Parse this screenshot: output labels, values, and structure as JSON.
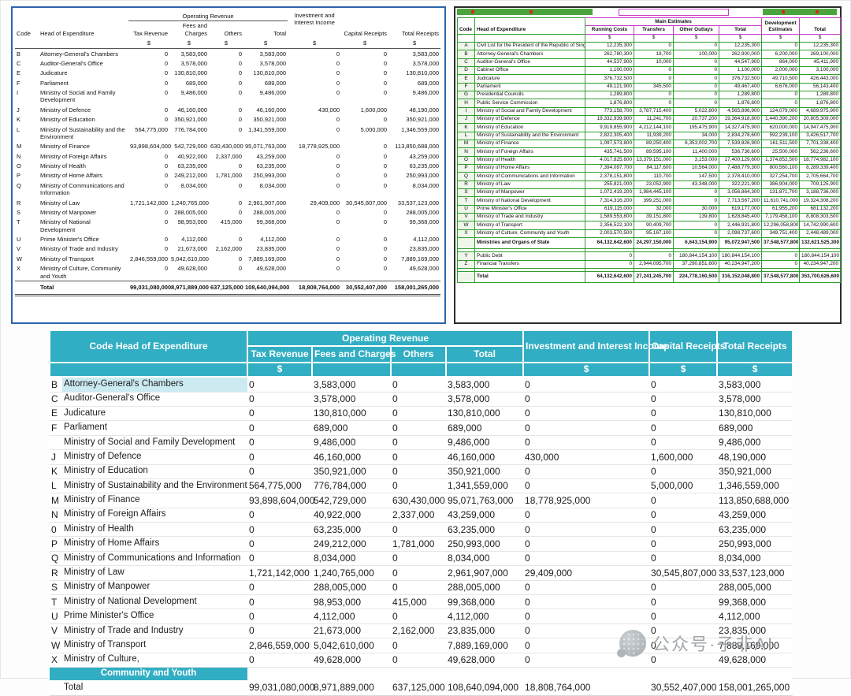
{
  "colors": {
    "accent_teal": "#31aec3",
    "highlight": "#cbeaf1",
    "left_border": "#2e64ad",
    "annotation_green": "#2f9e2f",
    "annotation_magenta": "#c83cc8"
  },
  "watermark": {
    "text": "公众号·子非AI"
  },
  "left_panel": {
    "headers": {
      "code": "Code",
      "head": "Head of Expenditure",
      "group_operating": "Operating Revenue",
      "cols": [
        "Tax Revenue",
        "Fees and Charges",
        "Others",
        "Total"
      ],
      "investment": "Investment and Interest Income",
      "capital": "Capital Receipts",
      "total_receipts": "Total Receipts",
      "currency": "$"
    },
    "rows": [
      {
        "code": "B",
        "head": "Attorney-General's Chambers",
        "values": [
          "0",
          "3,583,000",
          "0",
          "3,583,000",
          "0",
          "0",
          "3,583,000"
        ]
      },
      {
        "code": "C",
        "head": "Auditor-General's Office",
        "values": [
          "0",
          "3,578,000",
          "0",
          "3,578,000",
          "0",
          "0",
          "3,578,000"
        ]
      },
      {
        "code": "E",
        "head": "Judicature",
        "values": [
          "0",
          "130,810,000",
          "0",
          "130,810,000",
          "0",
          "0",
          "130,810,000"
        ]
      },
      {
        "code": "F",
        "head": "Parliament",
        "values": [
          "0",
          "689,000",
          "0",
          "689,000",
          "0",
          "0",
          "689,000"
        ]
      },
      {
        "code": "I",
        "head": "Ministry of Social and Family Development",
        "values": [
          "0",
          "9,486,000",
          "0",
          "9,486,000",
          "0",
          "0",
          "9,486,000"
        ]
      },
      {
        "code": "J",
        "head": "Ministry of Defence",
        "values": [
          "0",
          "46,160,000",
          "0",
          "46,160,000",
          "430,000",
          "1,600,000",
          "48,190,000"
        ]
      },
      {
        "code": "K",
        "head": "Ministry of Education",
        "values": [
          "0",
          "350,921,000",
          "0",
          "350,921,000",
          "0",
          "0",
          "350,921,000"
        ]
      },
      {
        "code": "L",
        "head": "Ministry of Sustainability and the Environment",
        "values": [
          "564,775,000",
          "776,784,000",
          "0",
          "1,341,559,000",
          "0",
          "5,000,000",
          "1,346,559,000"
        ]
      },
      {
        "code": "M",
        "head": "Ministry of Finance",
        "values": [
          "93,898,604,000",
          "542,729,000",
          "630,430,000",
          "95,071,763,000",
          "18,778,925,000",
          "0",
          "113,850,688,000"
        ]
      },
      {
        "code": "N",
        "head": "Ministry of Foreign Affairs",
        "values": [
          "0",
          "40,922,000",
          "2,337,000",
          "43,259,000",
          "0",
          "0",
          "43,259,000"
        ]
      },
      {
        "code": "O",
        "head": "Ministry of Health",
        "values": [
          "0",
          "63,235,000",
          "0",
          "63,235,000",
          "0",
          "0",
          "63,235,000"
        ]
      },
      {
        "code": "P",
        "head": "Ministry of Home Affairs",
        "values": [
          "0",
          "249,212,000",
          "1,781,000",
          "250,993,000",
          "0",
          "0",
          "250,993,000"
        ]
      },
      {
        "code": "Q",
        "head": "Ministry of Communications and Information",
        "values": [
          "0",
          "8,034,000",
          "0",
          "8,034,000",
          "0",
          "0",
          "8,034,000"
        ]
      },
      {
        "code": "R",
        "head": "Ministry of Law",
        "values": [
          "1,721,142,000",
          "1,240,765,000",
          "0",
          "2,961,907,000",
          "29,409,000",
          "30,545,807,000",
          "33,537,123,000"
        ]
      },
      {
        "code": "S",
        "head": "Ministry of Manpower",
        "values": [
          "0",
          "288,005,000",
          "0",
          "288,005,000",
          "0",
          "0",
          "288,005,000"
        ]
      },
      {
        "code": "T",
        "head": "Ministry of National Development",
        "values": [
          "0",
          "98,953,000",
          "415,000",
          "99,368,000",
          "0",
          "0",
          "99,368,000"
        ]
      },
      {
        "code": "U",
        "head": "Prime Minister's Office",
        "values": [
          "0",
          "4,112,000",
          "0",
          "4,112,000",
          "0",
          "0",
          "4,112,000"
        ]
      },
      {
        "code": "V",
        "head": "Ministry of Trade and Industry",
        "values": [
          "0",
          "21,673,000",
          "2,162,000",
          "23,835,000",
          "0",
          "0",
          "23,835,000"
        ]
      },
      {
        "code": "W",
        "head": "Ministry of Transport",
        "values": [
          "2,846,559,000",
          "5,042,610,000",
          "0",
          "7,889,169,000",
          "0",
          "0",
          "7,889,169,000"
        ]
      },
      {
        "code": "X",
        "head": "Ministry of Culture, Community and Youth",
        "values": [
          "0",
          "49,628,000",
          "0",
          "49,628,000",
          "0",
          "0",
          "49,628,000"
        ]
      }
    ],
    "total": {
      "label": "Total",
      "values": [
        "99,031,080,000",
        "8,971,889,000",
        "637,125,000",
        "108,640,094,000",
        "18,808,764,000",
        "30,552,407,000",
        "158,001,265,000"
      ]
    }
  },
  "right_panel": {
    "headers": {
      "code": "Code",
      "head": "Head of Expenditure",
      "group_main": "Main Estimates",
      "cols": [
        "Running Costs",
        "Transfers",
        "Other Outlays",
        "Total"
      ],
      "development": "Development Estimates",
      "total": "Total",
      "currency": "$"
    },
    "rows": [
      {
        "code": "A",
        "head": "Civil List for the President of the Republic of Singapore",
        "values": [
          "12,235,300",
          "0",
          "0",
          "12,235,300",
          "0",
          "12,235,300"
        ]
      },
      {
        "code": "B",
        "head": "Attorney-General's Chambers",
        "values": [
          "262,780,300",
          "19,700",
          "100,000",
          "262,900,000",
          "6,200,000",
          "269,100,000"
        ]
      },
      {
        "code": "C",
        "head": "Auditor-General's Office",
        "values": [
          "44,537,900",
          "10,000",
          "0",
          "44,547,900",
          "864,000",
          "45,411,900"
        ]
      },
      {
        "code": "D",
        "head": "Cabinet Office",
        "values": [
          "1,100,000",
          "0",
          "0",
          "1,100,000",
          "2,000,000",
          "3,100,000"
        ]
      },
      {
        "code": "E",
        "head": "Judicature",
        "values": [
          "376,732,500",
          "0",
          "0",
          "376,732,500",
          "49,710,500",
          "426,443,000"
        ]
      },
      {
        "code": "F",
        "head": "Parliament",
        "values": [
          "49,121,900",
          "345,500",
          "0",
          "49,467,400",
          "6,676,000",
          "56,143,400"
        ]
      },
      {
        "code": "G",
        "head": "Presidential Councils",
        "values": [
          "1,289,800",
          "0",
          "0",
          "1,289,800",
          "0",
          "1,289,800"
        ]
      },
      {
        "code": "H",
        "head": "Public Service Commission",
        "values": [
          "1,876,800",
          "0",
          "0",
          "1,876,800",
          "0",
          "1,876,800"
        ]
      },
      {
        "code": "I",
        "head": "Ministry of Social and Family Development",
        "values": [
          "773,158,700",
          "3,787,715,400",
          "5,022,800",
          "4,565,896,900",
          "124,079,000",
          "4,689,975,900"
        ]
      },
      {
        "code": "J",
        "head": "Ministry of Defence",
        "values": [
          "19,332,939,900",
          "11,241,700",
          "20,737,200",
          "19,364,918,800",
          "1,440,390,200",
          "20,805,309,000"
        ]
      },
      {
        "code": "K",
        "head": "Ministry of Education",
        "values": [
          "9,919,855,900",
          "4,212,144,100",
          "195,475,900",
          "14,327,475,900",
          "620,000,000",
          "14,947,475,900"
        ]
      },
      {
        "code": "L",
        "head": "Ministry of Sustainability and the Environment",
        "values": [
          "2,822,305,400",
          "11,939,200",
          "34,000",
          "2,834,278,600",
          "592,239,100",
          "3,426,517,700"
        ]
      },
      {
        "code": "M",
        "head": "Ministry of Finance",
        "values": [
          "1,097,573,800",
          "89,250,400",
          "6,353,002,700",
          "7,539,826,900",
          "161,511,500",
          "7,701,338,400"
        ]
      },
      {
        "code": "N",
        "head": "Ministry of Foreign Affairs",
        "values": [
          "435,741,500",
          "89,595,100",
          "11,400,000",
          "536,736,600",
          "25,500,000",
          "562,236,600"
        ]
      },
      {
        "code": "O",
        "head": "Ministry of Health",
        "values": [
          "4,017,825,600",
          "13,379,151,000",
          "3,153,000",
          "17,400,129,600",
          "1,374,852,500",
          "18,774,982,100"
        ]
      },
      {
        "code": "P",
        "head": "Ministry of Home Affairs",
        "values": [
          "7,394,097,700",
          "84,117,600",
          "10,564,000",
          "7,488,779,300",
          "800,560,100",
          "8,289,339,400"
        ]
      },
      {
        "code": "Q",
        "head": "Ministry of Communications and Information",
        "values": [
          "2,378,151,800",
          "110,700",
          "147,500",
          "2,378,410,000",
          "327,254,700",
          "2,705,664,700"
        ]
      },
      {
        "code": "R",
        "head": "Ministry of Law",
        "values": [
          "255,821,000",
          "23,052,900",
          "43,348,000",
          "322,221,900",
          "386,904,000",
          "709,125,900"
        ]
      },
      {
        "code": "S",
        "head": "Ministry of Manpower",
        "values": [
          "1,072,419,200",
          "1,984,445,100",
          "0",
          "3,056,864,300",
          "131,871,700",
          "3,188,736,000"
        ]
      },
      {
        "code": "T",
        "head": "Ministry of National Development",
        "values": [
          "7,314,316,200",
          "399,251,000",
          "0",
          "7,713,567,200",
          "11,610,741,000",
          "19,324,308,200"
        ]
      },
      {
        "code": "U",
        "head": "Prime Minister's Office",
        "values": [
          "619,115,000",
          "32,000",
          "30,000",
          "619,177,000",
          "61,955,200",
          "681,132,200"
        ]
      },
      {
        "code": "V",
        "head": "Ministry of Trade and Industry",
        "values": [
          "1,589,553,800",
          "39,151,800",
          "139,800",
          "1,628,845,400",
          "7,179,458,100",
          "8,808,303,500"
        ]
      },
      {
        "code": "W",
        "head": "Ministry of Transport",
        "values": [
          "2,356,522,100",
          "90,409,700",
          "0",
          "2,446,931,800",
          "12,296,058,800",
          "14,742,990,600"
        ]
      },
      {
        "code": "X",
        "head": "Ministry of Culture, Community and Youth",
        "values": [
          "2,003,570,500",
          "95,167,100",
          "0",
          "2,098,737,600",
          "349,751,400",
          "2,448,489,000"
        ]
      }
    ],
    "subtotal": {
      "label": "Ministries and Organs of State",
      "values": [
        "64,132,642,600",
        "24,297,150,000",
        "6,643,154,900",
        "95,072,947,500",
        "37,548,577,800",
        "132,621,525,300"
      ]
    },
    "extra_rows": [
      {
        "code": "Y",
        "head": "Public Debt",
        "values": [
          "0",
          "0",
          "180,844,154,100",
          "180,844,154,100",
          "0",
          "180,844,154,100"
        ]
      },
      {
        "code": "Z",
        "head": "Financial Transfers",
        "values": [
          "0",
          "2,944,095,700",
          "37,290,851,600",
          "40,234,947,200",
          "0",
          "40,234,947,200"
        ]
      }
    ],
    "total": {
      "label": "Total",
      "values": [
        "64,132,642,600",
        "27,241,245,700",
        "224,778,160,500",
        "316,152,048,800",
        "37,548,577,800",
        "353,700,626,600"
      ]
    }
  },
  "bottom_table": {
    "headers": {
      "code_head": "Code Head of Expenditure",
      "group_operating": "Operating Revenue",
      "cols": [
        "Tax Revenue",
        "Fees and Charges",
        "Others",
        "Total"
      ],
      "investment": "Investment and Interest Income",
      "capital": "Capital Receipts",
      "total_receipts": "Total Receipts",
      "currency": "$"
    },
    "rows": [
      {
        "code": "B",
        "head": "Attorney-General's Chambers",
        "highlight": true,
        "values": [
          "0",
          "3,583,000",
          "0",
          "3,583,000",
          "0",
          "0",
          "3,583,000"
        ]
      },
      {
        "code": "C",
        "head": "Auditor-General's Office",
        "values": [
          "0",
          "3,578,000",
          "0",
          "3,578,000",
          "0",
          "0",
          "3,578,000"
        ]
      },
      {
        "code": "E",
        "head": "Judicature",
        "values": [
          "0",
          "130,810,000",
          "0",
          "130,810,000",
          "0",
          "0",
          "130,810,000"
        ]
      },
      {
        "code": "F",
        "head": "Parliament",
        "values": [
          "0",
          "689,000",
          "0",
          "689,000",
          "0",
          "0",
          "689,000"
        ]
      },
      {
        "code": "",
        "head": "Ministry of Social and Family Development",
        "values": [
          "0",
          "9,486,000",
          "0",
          "9,486,000",
          "0",
          "0",
          "9,486,000"
        ]
      },
      {
        "code": "J",
        "head": "Ministry of Defence",
        "values": [
          "0",
          "46,160,000",
          "0",
          "46,160,000",
          "430,000",
          "1,600,000",
          "48,190,000"
        ]
      },
      {
        "code": "K",
        "head": "Ministry of Education",
        "values": [
          "0",
          "350,921,000",
          "0",
          "350,921,000",
          "0",
          "0",
          "350,921,000"
        ]
      },
      {
        "code": "L",
        "head": "Ministry of Sustainability and the Environment",
        "values": [
          "564,775,000",
          "776,784,000",
          "0",
          "1,341,559,000",
          "0",
          "5,000,000",
          "1,346,559,000"
        ]
      },
      {
        "code": "M",
        "head": "Ministry of Finance",
        "values": [
          "93,898,604,000",
          "542,729,000",
          "630,430,000",
          "95,071,763,000",
          "18,778,925,000",
          "0",
          "113,850,688,000"
        ]
      },
      {
        "code": "N",
        "head": "Ministry of Foreign Affairs",
        "values": [
          "0",
          "40,922,000",
          "2,337,000",
          "43,259,000",
          "0",
          "0",
          "43,259,000"
        ]
      },
      {
        "code": "0",
        "head": "Ministry of Health",
        "values": [
          "0",
          "63,235,000",
          "0",
          "63,235,000",
          "0",
          "0",
          "63,235,000"
        ]
      },
      {
        "code": "P",
        "head": "Ministry of Home Affairs",
        "values": [
          "0",
          "249,212,000",
          "1,781,000",
          "250,993,000",
          "0",
          "0",
          "250,993,000"
        ]
      },
      {
        "code": "Q",
        "head": "Ministry of Communications and Information",
        "values": [
          "0",
          "8,034,000",
          "0",
          "8,034,000",
          "0",
          "0",
          "8,034,000"
        ]
      },
      {
        "code": "R",
        "head": "Ministry of Law",
        "values": [
          "1,721,142,000",
          "1,240,765,000",
          "0",
          "2,961,907,000",
          "29,409,000",
          "30,545,807,000",
          "33,537,123,000"
        ]
      },
      {
        "code": "S",
        "head": "Ministry of Manpower",
        "values": [
          "0",
          "288,005,000",
          "0",
          "288,005,000",
          "0",
          "0",
          "288,005,000"
        ]
      },
      {
        "code": "T",
        "head": "Ministry of National Development",
        "values": [
          "0",
          "98,953,000",
          "415,000",
          "99,368,000",
          "0",
          "0",
          "99,368,000"
        ]
      },
      {
        "code": "U",
        "head": "Prime Minister's Office",
        "values": [
          "0",
          "4,112,000",
          "0",
          "4,112,000",
          "0",
          "0",
          "4,112,000"
        ]
      },
      {
        "code": "V",
        "head": "Ministry of Trade and Industry",
        "values": [
          "0",
          "21,673,000",
          "2,162,000",
          "23,835,000",
          "0",
          "0",
          "23,835,000"
        ]
      },
      {
        "code": "W",
        "head": "Ministry of Transport",
        "values": [
          "2,846,559,000",
          "5,042,610,000",
          "0",
          "7,889,169,000",
          "0",
          "0",
          "7,889,169,000"
        ]
      },
      {
        "code": "X",
        "head": "Ministry of Culture,",
        "values": [
          "0",
          "49,628,000",
          "0",
          "49,628,000",
          "0",
          "0",
          "49,628,000"
        ]
      }
    ],
    "continuation": {
      "label": "Community and Youth"
    },
    "total": {
      "label": "Total",
      "values": [
        "99,031,080,000",
        "8,971,889,000",
        "637,125,000",
        "108,640,094,000",
        "18,808,764,000",
        "30,552,407,000",
        "158,001,265,000"
      ]
    }
  }
}
